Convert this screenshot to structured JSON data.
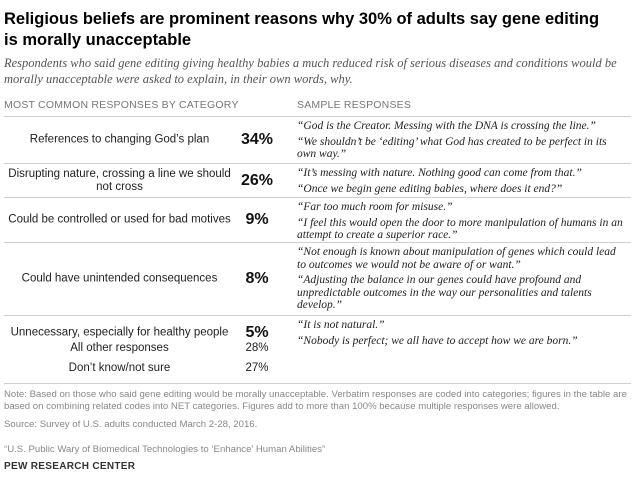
{
  "title": "Religious beliefs are prominent reasons why 30% of adults say gene editing is morally unacceptable",
  "subtitle": "Respondents who said gene editing giving healthy babies a much reduced risk of serious diseases and conditions would be morally unacceptable were asked to explain, in their own words, why.",
  "headers": {
    "left": "MOST COMMON RESPONSES BY CATEGORY",
    "right": "SAMPLE RESPONSES"
  },
  "chart_data": {
    "type": "table",
    "rows": [
      {
        "category": "References to changing God’s plan",
        "value": "34%",
        "quotes": [
          "“God is the Creator. Messing with the DNA is crossing the line.”",
          "“We shouldn’t be ‘editing’ what God has created to be perfect in its own way.”"
        ]
      },
      {
        "category": "Disrupting nature, crossing a line we should not cross",
        "value": "26%",
        "quotes": [
          "“It’s messing with nature. Nothing good can come from that.”",
          "“Once we begin gene editing babies, where does it end?”"
        ]
      },
      {
        "category": "Could be controlled or used for bad motives",
        "value": "9%",
        "quotes": [
          "“Far too much room for misuse.”",
          "“I feel this would open the door to more manipulation of humans in an attempt to create a superior race.”"
        ]
      },
      {
        "category": "Could have unintended consequences",
        "value": "8%",
        "quotes": [
          "“Not enough is known about manipulation of genes which could lead to outcomes we would not be aware of or want.”",
          "“Adjusting the balance in our genes could have profound and unpredictable outcomes in the way our personalities and talents develop.”"
        ]
      },
      {
        "category": "Unnecessary, especially for healthy people",
        "value": "5%",
        "quotes": [
          "“It is not natural.”",
          "“Nobody is perfect; we all have to accept how we are born.”"
        ]
      }
    ],
    "other_rows": [
      {
        "category": "All other responses",
        "value": "28%"
      },
      {
        "category": "Don’t know/not sure",
        "value": "27%"
      }
    ]
  },
  "note": "Note: Based on those who said gene editing would be morally unacceptable. Verbatim responses are coded into categories; figures in the table are based on combining related codes into NET categories. Figures add to more than 100% because multiple responses were allowed.",
  "source": "Source: Survey of U.S. adults conducted March 2-28, 2016.",
  "report": "“U.S. Public Wary of Biomedical Technologies to ‘Enhance’ Human Abilities”",
  "brand": "PEW RESEARCH CENTER"
}
